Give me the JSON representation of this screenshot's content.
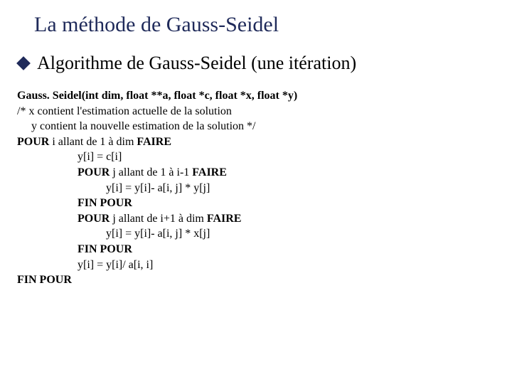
{
  "colors": {
    "title": "#1f2a5a",
    "bullet": "#1f2a5a",
    "text": "#000000",
    "background": "#ffffff"
  },
  "title": "La méthode de Gauss-Seidel",
  "subtitle": "Algorithme de Gauss-Seidel (une itération)",
  "sig_prefix": "Gauss. Seidel(int dim, float  **a, float *c, float *x, float *y)",
  "comment1": "/* x contient l'estimation actuelle de la solution",
  "comment2": "y contient la nouvelle estimation de la solution */",
  "l_pour_i_a": "POUR",
  "l_pour_i_b": " i allant de 1 à dim ",
  "l_pour_i_c": "FAIRE",
  "l_yc": "y[i] = c[i]",
  "l_pour_j1_a": "POUR",
  "l_pour_j1_b": " j allant de 1 à i-1 ",
  "l_pour_j1_c": "FAIRE",
  "l_inner1": "y[i] = y[i]- a[i, j] * y[j]",
  "l_fin1": "FIN POUR",
  "l_pour_j2_a": "POUR",
  "l_pour_j2_b": " j allant de i+1 à dim ",
  "l_pour_j2_c": "FAIRE",
  "l_inner2": "y[i] = y[i]- a[i, j] * x[j]",
  "l_fin2": "FIN POUR",
  "l_div": "y[i] = y[i]/ a[i, i]",
  "l_fin_outer": "FIN POUR"
}
